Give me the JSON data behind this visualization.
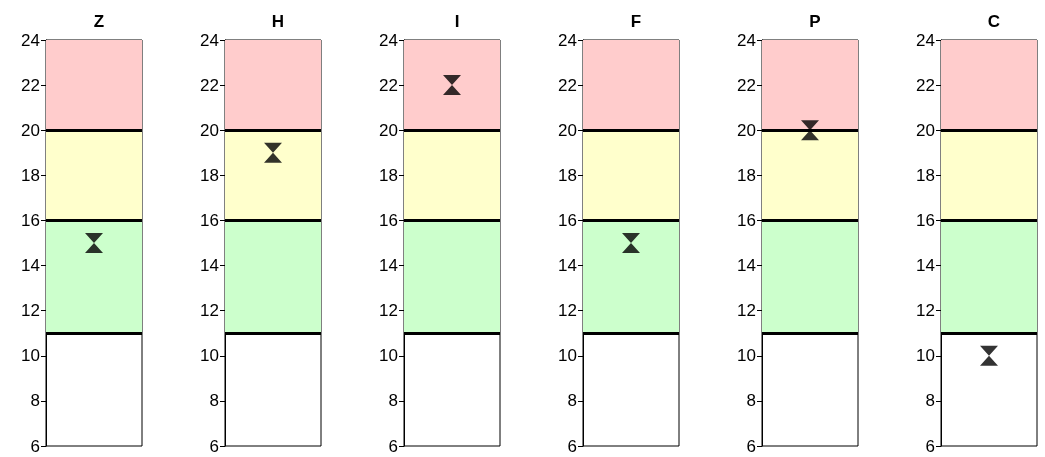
{
  "chart_data": [
    {
      "type": "scatter",
      "title": "Z",
      "categories": [
        null
      ],
      "values": [
        15
      ],
      "color": "#000000",
      "marker": "triangle",
      "ylim": [
        6,
        24
      ],
      "yticks": [
        6,
        8,
        10,
        12,
        14,
        16,
        18,
        20,
        22,
        24
      ],
      "grid": false,
      "tick_labels": "y",
      "bands": [
        {
          "axis": "y",
          "from": 11,
          "to": 16,
          "color": "#ccffcc"
        },
        {
          "axis": "y",
          "from": 16,
          "to": 20,
          "color": "#ffffcc"
        },
        {
          "axis": "y",
          "from": 20,
          "to": 24,
          "color": "#ffcccc"
        }
      ],
      "ref_lines": [
        {
          "axis": "y",
          "value": 11,
          "color": "#000000"
        },
        {
          "axis": "y",
          "value": 16,
          "color": "#000000"
        },
        {
          "axis": "y",
          "value": 20,
          "color": "#000000"
        }
      ]
    },
    {
      "type": "scatter",
      "title": "H",
      "categories": [
        null
      ],
      "values": [
        19
      ],
      "color": "#000000",
      "marker": "triangle",
      "ylim": [
        6,
        24
      ],
      "yticks": [
        6,
        8,
        10,
        12,
        14,
        16,
        18,
        20,
        22,
        24
      ],
      "grid": false,
      "tick_labels": "y",
      "bands": [
        {
          "axis": "y",
          "from": 11,
          "to": 16,
          "color": "#ccffcc"
        },
        {
          "axis": "y",
          "from": 16,
          "to": 20,
          "color": "#ffffcc"
        },
        {
          "axis": "y",
          "from": 20,
          "to": 24,
          "color": "#ffcccc"
        }
      ],
      "ref_lines": [
        {
          "axis": "y",
          "value": 11,
          "color": "#000000"
        },
        {
          "axis": "y",
          "value": 16,
          "color": "#000000"
        },
        {
          "axis": "y",
          "value": 20,
          "color": "#000000"
        }
      ]
    },
    {
      "type": "scatter",
      "title": "I",
      "categories": [
        null
      ],
      "values": [
        22
      ],
      "color": "#000000",
      "marker": "triangle",
      "ylim": [
        6,
        24
      ],
      "yticks": [
        6,
        8,
        10,
        12,
        14,
        16,
        18,
        20,
        22,
        24
      ],
      "grid": false,
      "tick_labels": "y",
      "bands": [
        {
          "axis": "y",
          "from": 11,
          "to": 16,
          "color": "#ccffcc"
        },
        {
          "axis": "y",
          "from": 16,
          "to": 20,
          "color": "#ffffcc"
        },
        {
          "axis": "y",
          "from": 20,
          "to": 24,
          "color": "#ffcccc"
        }
      ],
      "ref_lines": [
        {
          "axis": "y",
          "value": 11,
          "color": "#000000"
        },
        {
          "axis": "y",
          "value": 16,
          "color": "#000000"
        },
        {
          "axis": "y",
          "value": 20,
          "color": "#000000"
        }
      ]
    },
    {
      "type": "scatter",
      "title": "F",
      "categories": [
        null
      ],
      "values": [
        15
      ],
      "color": "#000000",
      "marker": "triangle",
      "ylim": [
        6,
        24
      ],
      "yticks": [
        6,
        8,
        10,
        12,
        14,
        16,
        18,
        20,
        22,
        24
      ],
      "grid": false,
      "tick_labels": "y",
      "bands": [
        {
          "axis": "y",
          "from": 11,
          "to": 16,
          "color": "#ccffcc"
        },
        {
          "axis": "y",
          "from": 16,
          "to": 20,
          "color": "#ffffcc"
        },
        {
          "axis": "y",
          "from": 20,
          "to": 24,
          "color": "#ffcccc"
        }
      ],
      "ref_lines": [
        {
          "axis": "y",
          "value": 11,
          "color": "#000000"
        },
        {
          "axis": "y",
          "value": 16,
          "color": "#000000"
        },
        {
          "axis": "y",
          "value": 20,
          "color": "#000000"
        }
      ]
    },
    {
      "type": "scatter",
      "title": "P",
      "categories": [
        null
      ],
      "values": [
        20
      ],
      "color": "#000000",
      "marker": "triangle",
      "ylim": [
        6,
        24
      ],
      "yticks": [
        6,
        8,
        10,
        12,
        14,
        16,
        18,
        20,
        22,
        24
      ],
      "grid": false,
      "tick_labels": "y",
      "bands": [
        {
          "axis": "y",
          "from": 11,
          "to": 16,
          "color": "#ccffcc"
        },
        {
          "axis": "y",
          "from": 16,
          "to": 20,
          "color": "#ffffcc"
        },
        {
          "axis": "y",
          "from": 20,
          "to": 24,
          "color": "#ffcccc"
        }
      ],
      "ref_lines": [
        {
          "axis": "y",
          "value": 11,
          "color": "#000000"
        },
        {
          "axis": "y",
          "value": 16,
          "color": "#000000"
        },
        {
          "axis": "y",
          "value": 20,
          "color": "#000000"
        }
      ]
    },
    {
      "type": "scatter",
      "title": "C",
      "categories": [
        null
      ],
      "values": [
        10
      ],
      "color": "#000000",
      "marker": "triangle",
      "ylim": [
        6,
        24
      ],
      "yticks": [
        6,
        8,
        10,
        12,
        14,
        16,
        18,
        20,
        22,
        24
      ],
      "grid": false,
      "tick_labels": "y",
      "bands": [
        {
          "axis": "y",
          "from": 11,
          "to": 16,
          "color": "#ccffcc"
        },
        {
          "axis": "y",
          "from": 16,
          "to": 20,
          "color": "#ffffcc"
        },
        {
          "axis": "y",
          "from": 20,
          "to": 24,
          "color": "#ffcccc"
        }
      ],
      "ref_lines": [
        {
          "axis": "y",
          "value": 11,
          "color": "#000000"
        },
        {
          "axis": "y",
          "value": 16,
          "color": "#000000"
        },
        {
          "axis": "y",
          "value": 20,
          "color": "#000000"
        }
      ]
    }
  ]
}
